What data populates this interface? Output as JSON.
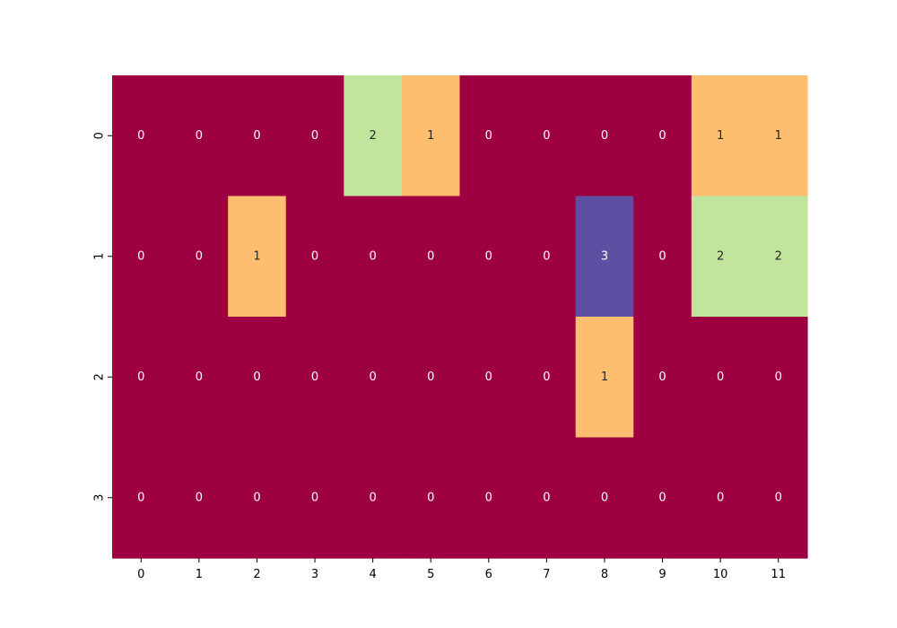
{
  "chart_data": {
    "type": "heatmap",
    "title": "",
    "xlabel": "",
    "ylabel": "",
    "x_categories": [
      "0",
      "1",
      "2",
      "3",
      "4",
      "5",
      "6",
      "7",
      "8",
      "9",
      "10",
      "11"
    ],
    "y_categories": [
      "0",
      "1",
      "2",
      "3"
    ],
    "values": [
      [
        0,
        0,
        0,
        0,
        2,
        1,
        0,
        0,
        0,
        0,
        1,
        1
      ],
      [
        0,
        0,
        1,
        0,
        0,
        0,
        0,
        0,
        3,
        0,
        2,
        2
      ],
      [
        0,
        0,
        0,
        0,
        0,
        0,
        0,
        0,
        1,
        0,
        0,
        0
      ],
      [
        0,
        0,
        0,
        0,
        0,
        0,
        0,
        0,
        0,
        0,
        0,
        0
      ]
    ],
    "annotations": true,
    "colorbar": false,
    "color_scale": {
      "0": "#9e0142",
      "1": "#fdbe6f",
      "2": "#c1e59c",
      "3": "#5e4fa2"
    },
    "text_colors": {
      "0": "#ffffff",
      "1": "#262626",
      "2": "#262626",
      "3": "#ffffff"
    }
  }
}
